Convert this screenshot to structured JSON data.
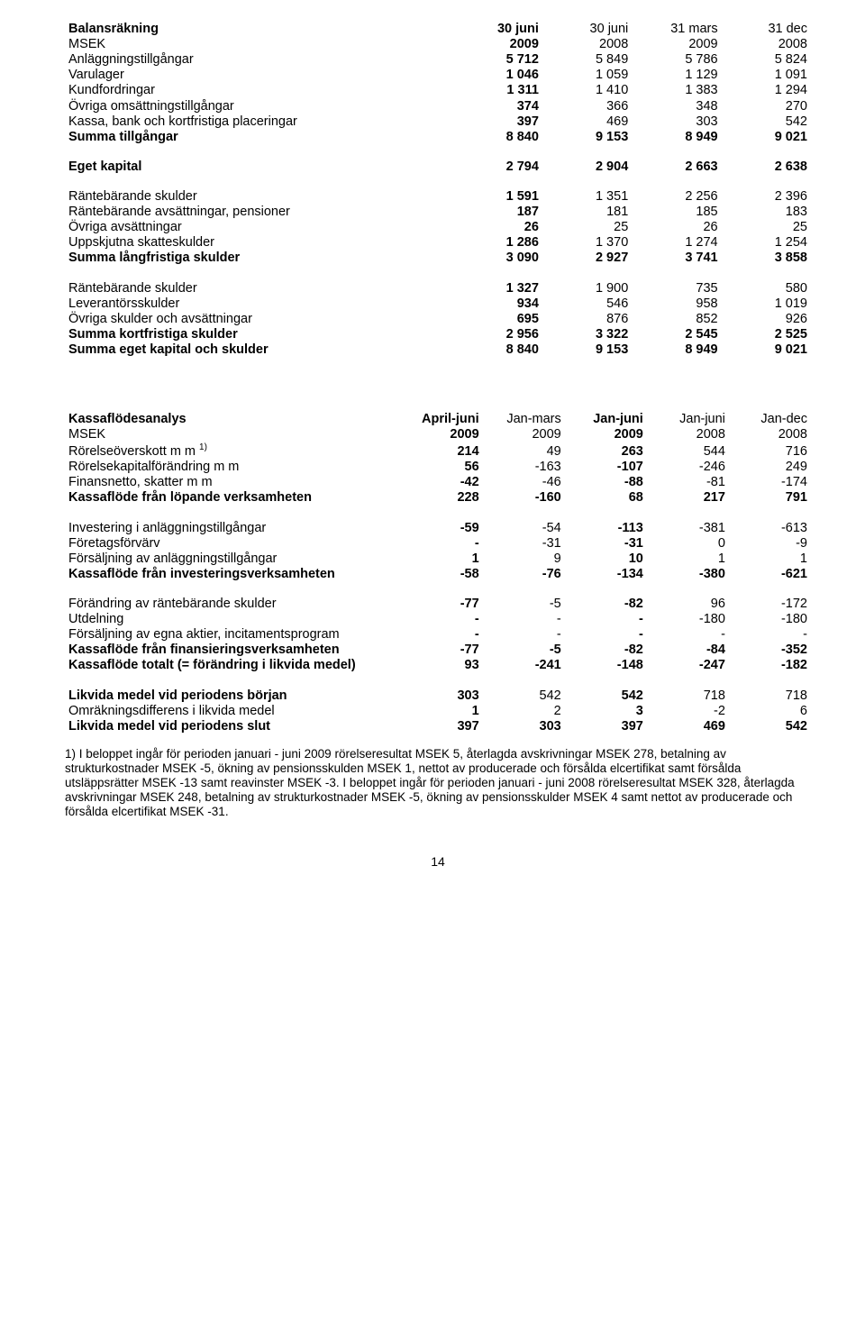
{
  "balance": {
    "header": {
      "r1": {
        "c0": "Balansräkning",
        "c1": "30 juni",
        "c2": "30 juni",
        "c3": "31 mars",
        "c4": "31 dec"
      },
      "r2": {
        "c0": "MSEK",
        "c1": "2009",
        "c2": "2008",
        "c3": "2009",
        "c4": "2008"
      }
    },
    "rows": {
      "anlaggning": {
        "label": "Anläggningstillgångar",
        "c1": "5 712",
        "c2": "5 849",
        "c3": "5 786",
        "c4": "5 824"
      },
      "varulager": {
        "label": "Varulager",
        "c1": "1 046",
        "c2": "1 059",
        "c3": "1 129",
        "c4": "1 091"
      },
      "kundford": {
        "label": "Kundfordringar",
        "c1": "1 311",
        "c2": "1 410",
        "c3": "1 383",
        "c4": "1 294"
      },
      "ovrigaoms": {
        "label": "Övriga omsättningstillgångar",
        "c1": "374",
        "c2": "366",
        "c3": "348",
        "c4": "270"
      },
      "kassa": {
        "label": "Kassa, bank och kortfristiga placeringar",
        "c1": "397",
        "c2": "469",
        "c3": "303",
        "c4": "542"
      },
      "summatill": {
        "label": "Summa tillgångar",
        "c1": "8 840",
        "c2": "9 153",
        "c3": "8 949",
        "c4": "9 021"
      },
      "egetkap": {
        "label": "Eget kapital",
        "c1": "2 794",
        "c2": "2 904",
        "c3": "2 663",
        "c4": "2 638"
      },
      "rantesk1": {
        "label": "Räntebärande skulder",
        "c1": "1 591",
        "c2": "1 351",
        "c3": "2 256",
        "c4": "2 396"
      },
      "ranteavs": {
        "label": "Räntebärande avsättningar, pensioner",
        "c1": "187",
        "c2": "181",
        "c3": "185",
        "c4": "183"
      },
      "ovrigavs": {
        "label": "Övriga avsättningar",
        "c1": "26",
        "c2": "25",
        "c3": "26",
        "c4": "25"
      },
      "uppskjut": {
        "label": "Uppskjutna skatteskulder",
        "c1": "1 286",
        "c2": "1 370",
        "c3": "1 274",
        "c4": "1 254"
      },
      "summalang": {
        "label": "Summa långfristiga skulder",
        "c1": "3 090",
        "c2": "2 927",
        "c3": "3 741",
        "c4": "3 858"
      },
      "rantesk2": {
        "label": "Räntebärande skulder",
        "c1": "1 327",
        "c2": "1 900",
        "c3": "735",
        "c4": "580"
      },
      "levsk": {
        "label": "Leverantörsskulder",
        "c1": "934",
        "c2": "546",
        "c3": "958",
        "c4": "1 019"
      },
      "ovrigask": {
        "label": "Övriga skulder och avsättningar",
        "c1": "695",
        "c2": "876",
        "c3": "852",
        "c4": "926"
      },
      "summakort": {
        "label": "Summa kortfristiga skulder",
        "c1": "2 956",
        "c2": "3 322",
        "c3": "2 545",
        "c4": "2 525"
      },
      "summaeget": {
        "label": "Summa eget kapital och skulder",
        "c1": "8 840",
        "c2": "9 153",
        "c3": "8 949",
        "c4": "9 021"
      }
    }
  },
  "cashflow": {
    "header": {
      "r1": {
        "c0": "Kassaflödesanalys",
        "c1": "April-juni",
        "c2": "Jan-mars",
        "c3": "Jan-juni",
        "c4": "Jan-juni",
        "c5": "Jan-dec"
      },
      "r2": {
        "c0": "MSEK",
        "c1": "2009",
        "c2": "2009",
        "c3": "2009",
        "c4": "2008",
        "c5": "2008"
      }
    },
    "rows": {
      "rorelseov": {
        "label": "Rörelseöverskott m m ",
        "sup": "1)",
        "c1": "214",
        "c2": "49",
        "c3": "263",
        "c4": "544",
        "c5": "716"
      },
      "rorelsekap": {
        "label": "Rörelsekapitalförändring m m",
        "c1": "56",
        "c2": "-163",
        "c3": "-107",
        "c4": "-246",
        "c5": "249"
      },
      "finansnetto": {
        "label": "Finansnetto, skatter m m",
        "c1": "-42",
        "c2": "-46",
        "c3": "-88",
        "c4": "-81",
        "c5": "-174"
      },
      "kf_lop": {
        "label": "Kassaflöde från löpande verksamheten",
        "c1": "228",
        "c2": "-160",
        "c3": "68",
        "c4": "217",
        "c5": "791"
      },
      "invanlagg": {
        "label": "Investering i anläggningstillgångar",
        "c1": "-59",
        "c2": "-54",
        "c3": "-113",
        "c4": "-381",
        "c5": "-613"
      },
      "foretagsf": {
        "label": "Företagsförvärv",
        "c1": "-",
        "c2": "-31",
        "c3": "-31",
        "c4": "0",
        "c5": "-9"
      },
      "forsanlagg": {
        "label": "Försäljning av anläggningstillgångar",
        "c1": "1",
        "c2": "9",
        "c3": "10",
        "c4": "1",
        "c5": "1"
      },
      "kf_inv": {
        "label": "Kassaflöde från investeringsverksamheten",
        "c1": "-58",
        "c2": "-76",
        "c3": "-134",
        "c4": "-380",
        "c5": "-621"
      },
      "forandrante": {
        "label": "Förändring av räntebärande skulder",
        "c1": "-77",
        "c2": "-5",
        "c3": "-82",
        "c4": "96",
        "c5": "-172"
      },
      "utdelning": {
        "label": "Utdelning",
        "c1": "-",
        "c2": "-",
        "c3": "-",
        "c4": "-180",
        "c5": "-180"
      },
      "forsegna": {
        "label": "Försäljning av egna aktier, incitamentsprogram",
        "c1": "-",
        "c2": "-",
        "c3": "-",
        "c4": "-",
        "c5": "-"
      },
      "kf_fin": {
        "label": "Kassaflöde från finansieringsverksamheten",
        "c1": "-77",
        "c2": "-5",
        "c3": "-82",
        "c4": "-84",
        "c5": "-352"
      },
      "kf_tot": {
        "label": "Kassaflöde totalt (= förändring i likvida medel)",
        "c1": "93",
        "c2": "-241",
        "c3": "-148",
        "c4": "-247",
        "c5": "-182"
      },
      "likvstart": {
        "label": "Likvida medel vid periodens början",
        "c1": "303",
        "c2": "542",
        "c3": "542",
        "c4": "718",
        "c5": "718"
      },
      "omrakn": {
        "label": "Omräkningsdifferens i likvida medel",
        "c1": "1",
        "c2": "2",
        "c3": "3",
        "c4": "-2",
        "c5": "6"
      },
      "likvslut": {
        "label": "Likvida medel vid periodens slut",
        "c1": "397",
        "c2": "303",
        "c3": "397",
        "c4": "469",
        "c5": "542"
      }
    }
  },
  "footnote": "1) I beloppet ingår för perioden januari - juni 2009 rörelseresultat MSEK 5, återlagda avskrivningar MSEK 278, betalning av strukturkostnader MSEK -5, ökning av pensionsskulden MSEK 1, nettot av producerade och försålda elcertifikat samt försålda utsläppsrätter MSEK -13 samt reavinster MSEK -3. I beloppet ingår för perioden januari - juni 2008 rörelseresultat MSEK 328, återlagda avskrivningar MSEK 248, betalning av strukturkostnader MSEK -5, ökning av pensionsskulder MSEK 4 samt nettot av producerade och försålda elcertifikat MSEK -31.",
  "page_number": "14",
  "col_widths": {
    "t1": {
      "c0": "52%",
      "c1": "12%",
      "c2": "12%",
      "c3": "12%",
      "c4": "12%"
    },
    "t2": {
      "c0": "45%",
      "c1": "11%",
      "c2": "11%",
      "c3": "11%",
      "c4": "11%",
      "c5": "11%"
    }
  }
}
